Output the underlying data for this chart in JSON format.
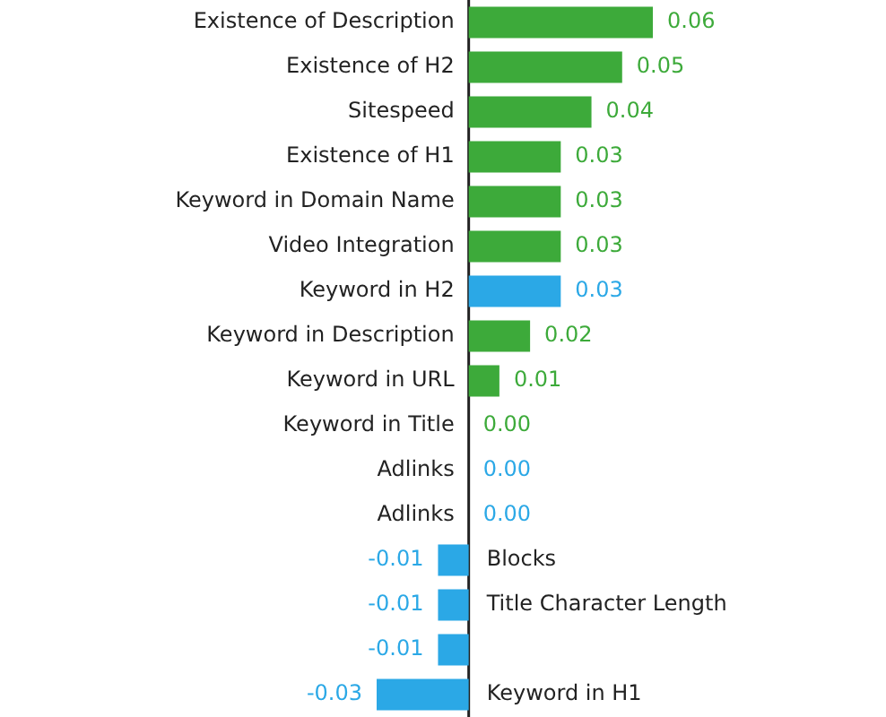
{
  "chart_data": {
    "type": "bar",
    "orientation": "horizontal",
    "categories": [
      "Existence of Description",
      "Existence of H2",
      "Sitespeed",
      "Existence of H1",
      "Keyword in Domain Name",
      "Video Integration",
      "Keyword in H2",
      "Keyword in Description",
      "Keyword in URL",
      "Keyword in Title",
      "Adlinks",
      "Adlinks",
      "Blocks",
      "Title Character Length",
      null,
      "Keyword in H1"
    ],
    "values": [
      0.06,
      0.05,
      0.04,
      0.03,
      0.03,
      0.03,
      0.03,
      0.02,
      0.01,
      0.0,
      0.0,
      0.0,
      -0.01,
      -0.01,
      -0.01,
      -0.03
    ],
    "colors": [
      "#3daa3a",
      "#3daa3a",
      "#3daa3a",
      "#3daa3a",
      "#3daa3a",
      "#3daa3a",
      "#2ba8e6",
      "#3daa3a",
      "#3daa3a",
      "#3daa3a",
      "#2ba8e6",
      "#2ba8e6",
      "#2ba8e6",
      "#2ba8e6",
      "#2ba8e6",
      "#2ba8e6"
    ],
    "value_labels": [
      "0.06",
      "0.05",
      "0.04",
      "0.03",
      "0.03",
      "0.03",
      "0.03",
      "0.02",
      "0.01",
      "0.00",
      "0.00",
      "0.00",
      "-0.01",
      "-0.01",
      "-0.01",
      "-0.03"
    ],
    "tick_labels": "y"
  }
}
